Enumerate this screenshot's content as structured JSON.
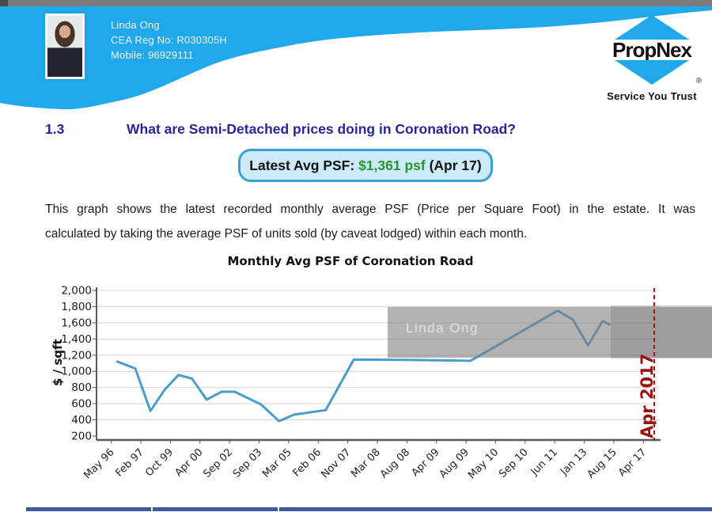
{
  "header": {
    "agent": {
      "name": "Linda Ong",
      "cea_reg": "CEA Reg No: R030305H",
      "mobile": "Mobile: 96929111"
    },
    "logo": {
      "brand": "PropNex",
      "tagline": "Service You Trust",
      "registered_mark": "®"
    },
    "colors": {
      "header_blue": "#21A7EB",
      "top_bar_gray": "#7B7B7B"
    }
  },
  "section": {
    "number": "1.3",
    "title": "What are Semi-Detached prices doing in Coronation Road?",
    "badge": {
      "label": "Latest Avg PSF: ",
      "value": "$1,361 psf",
      "suffix": " (Apr 17)",
      "value_color": "#2E9132"
    },
    "body_line1": "This graph shows the latest recorded monthly average PSF (Price per Square Foot) in the estate. It was",
    "body_line2": "calculated by taking the average PSF of units sold (by caveat lodged) within each month."
  },
  "chart_data": {
    "type": "line",
    "title": "Monthly Avg PSF of Coronation Road",
    "ylabel": "$ / sqft",
    "ylim": [
      200,
      2000
    ],
    "ytick_step": 200,
    "grid": true,
    "legend_position": "none",
    "x_labels": [
      "May 96",
      "Feb 97",
      "Oct 99",
      "Apr 00",
      "Sep 02",
      "Sep 03",
      "Mar 05",
      "Feb 06",
      "Nov 07",
      "Mar 08",
      "Aug 08",
      "Apr 09",
      "Aug 09",
      "May 10",
      "Sep 10",
      "Jun 11",
      "Jan 13",
      "Aug 15",
      "Apr 17"
    ],
    "series": [
      {
        "name": "Monthly Avg PSF",
        "color": "#4A9CCE",
        "points": [
          [
            0.037,
            1120
          ],
          [
            0.069,
            1035
          ],
          [
            0.096,
            510
          ],
          [
            0.121,
            770
          ],
          [
            0.146,
            955
          ],
          [
            0.17,
            910
          ],
          [
            0.196,
            650
          ],
          [
            0.223,
            748
          ],
          [
            0.246,
            748
          ],
          [
            0.293,
            590
          ],
          [
            0.325,
            385
          ],
          [
            0.352,
            465
          ],
          [
            0.392,
            505
          ],
          [
            0.408,
            520
          ],
          [
            0.458,
            1145
          ],
          [
            0.546,
            1142
          ],
          [
            0.666,
            1130
          ],
          [
            0.821,
            1750
          ],
          [
            0.848,
            1640
          ],
          [
            0.875,
            1320
          ],
          [
            0.901,
            1620
          ],
          [
            0.913,
            1580
          ]
        ]
      }
    ],
    "annotation": {
      "label": "Apr 2017",
      "color": "#9A1212",
      "line_style": "dashed",
      "x_frac": 0.993
    },
    "watermark": {
      "text": "Linda Ong"
    },
    "axis_color": "#595959",
    "grid_color": "#D4D4D4"
  },
  "footer": {
    "bar_color": "#3E5C9C"
  }
}
